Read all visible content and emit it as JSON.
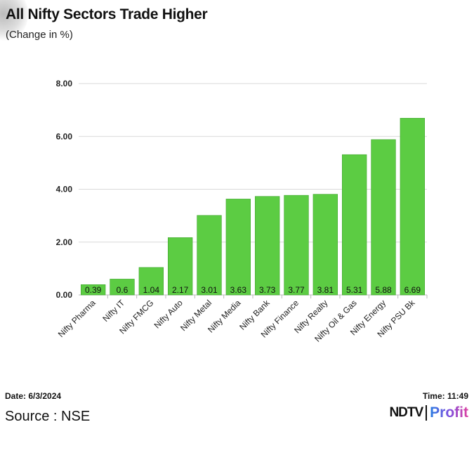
{
  "title": "All Nifty Sectors Trade Higher",
  "subtitle": "(Change in %)",
  "footer": {
    "date": "Date: 6/3/2024",
    "time": "Time: 11:49",
    "source": "Source : NSE",
    "logo_left": "NDTV",
    "logo_right": "Profit"
  },
  "colors": {
    "bar": "#5ccc43",
    "bar_stroke": "#3fa52c",
    "grid": "#d9d9d9"
  },
  "chart_data": {
    "type": "bar",
    "categories": [
      "Nifty Pharma",
      "Nifty IT",
      "Nifty FMCG",
      "Nifty Auto",
      "Nifty Metal",
      "Nifty Media",
      "Nifty Bank",
      "Nifty Finance",
      "Nifty Realty",
      "Nifty Oil & Gas",
      "Nifty Energy",
      "Nifty PSU Bk"
    ],
    "values": [
      0.39,
      0.6,
      1.04,
      2.17,
      3.01,
      3.63,
      3.73,
      3.77,
      3.81,
      5.31,
      5.88,
      6.69
    ],
    "data_labels": [
      "0.39",
      "0.6",
      "1.04",
      "2.17",
      "3.01",
      "3.63",
      "3.73",
      "3.77",
      "3.81",
      "5.31",
      "5.88",
      "6.69"
    ],
    "yticks": [
      "0.00",
      "2.00",
      "4.00",
      "6.00",
      "8.00"
    ],
    "ylim": [
      0,
      8
    ],
    "grid": true,
    "xlabel": "",
    "ylabel": ""
  }
}
